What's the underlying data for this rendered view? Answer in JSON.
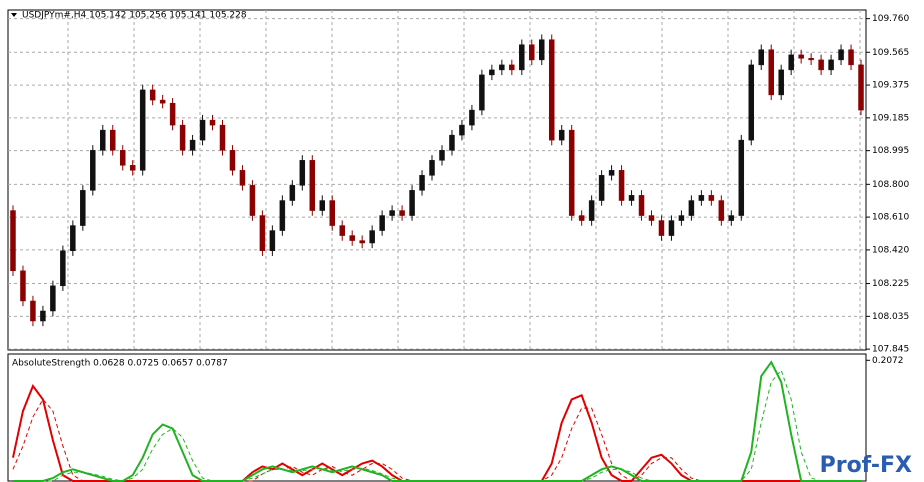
{
  "chart_data": [
    {
      "type": "candlestick",
      "title": "USDJPYm#,H4  105.142 105.256 105.141 105.228",
      "up_color": "#111111",
      "down_color": "#8b0000",
      "grid": true,
      "ylim": [
        107.84,
        109.81
      ],
      "yticks": [
        {
          "value": 109.76,
          "label": "109.760"
        },
        109.565,
        109.375,
        109.185,
        108.995,
        {
          "value": 108.8,
          "label": "108.800"
        },
        {
          "value": 108.61,
          "label": "108.610"
        },
        {
          "value": 108.42,
          "label": "108.420"
        },
        108.225,
        108.035,
        107.845
      ],
      "open": [
        108.648,
        108.299,
        108.124,
        108.008,
        108.066,
        108.212,
        108.415,
        108.561,
        108.765,
        108.997,
        109.114,
        108.997,
        108.91,
        108.881,
        109.347,
        109.288,
        109.27,
        109.143,
        108.997,
        109.056,
        109.172,
        109.143,
        108.997,
        108.881,
        108.794,
        108.619,
        108.415,
        108.532,
        108.706,
        108.794,
        108.939,
        108.648,
        108.706,
        108.561,
        108.503,
        108.474,
        108.46,
        108.532,
        108.619,
        108.648,
        108.619,
        108.765,
        108.852,
        108.939,
        108.997,
        109.085,
        109.143,
        109.23,
        109.434,
        109.463,
        109.492,
        109.463,
        109.609,
        109.521,
        109.638,
        109.056,
        109.114,
        108.619,
        108.59,
        108.706,
        108.852,
        108.881,
        108.706,
        108.736,
        108.619,
        108.59,
        108.503,
        108.59,
        108.619,
        108.706,
        108.736,
        108.706,
        108.59,
        108.619,
        109.056,
        109.492,
        109.58,
        109.318,
        109.463,
        109.55,
        109.53,
        109.521,
        109.463,
        109.521,
        109.58,
        109.492
      ],
      "high": [
        108.678,
        108.329,
        108.154,
        108.096,
        108.242,
        108.445,
        108.591,
        108.795,
        109.027,
        109.144,
        109.144,
        109.027,
        108.94,
        109.377,
        109.377,
        109.318,
        109.3,
        109.173,
        109.086,
        109.202,
        109.202,
        109.173,
        109.027,
        108.911,
        108.824,
        108.649,
        108.562,
        108.736,
        108.824,
        108.969,
        108.969,
        108.736,
        108.736,
        108.591,
        108.533,
        108.504,
        108.562,
        108.649,
        108.678,
        108.678,
        108.795,
        108.882,
        108.969,
        109.027,
        109.115,
        109.173,
        109.26,
        109.464,
        109.493,
        109.522,
        109.522,
        109.639,
        109.639,
        109.668,
        109.668,
        109.144,
        109.144,
        108.649,
        108.736,
        108.882,
        108.911,
        108.911,
        108.766,
        108.766,
        108.649,
        108.62,
        108.62,
        108.649,
        108.736,
        108.766,
        108.766,
        108.736,
        108.649,
        109.086,
        109.522,
        109.61,
        109.61,
        109.493,
        109.58,
        109.58,
        109.56,
        109.551,
        109.551,
        109.61,
        109.61,
        109.522
      ],
      "low": [
        108.269,
        108.094,
        107.978,
        107.978,
        108.036,
        108.182,
        108.385,
        108.531,
        108.735,
        108.967,
        108.967,
        108.88,
        108.851,
        108.851,
        109.258,
        109.24,
        109.113,
        108.967,
        108.967,
        109.026,
        109.113,
        108.967,
        108.851,
        108.764,
        108.589,
        108.385,
        108.385,
        108.502,
        108.676,
        108.764,
        108.618,
        108.618,
        108.531,
        108.473,
        108.444,
        108.43,
        108.43,
        108.502,
        108.589,
        108.589,
        108.589,
        108.735,
        108.822,
        108.909,
        108.967,
        109.055,
        109.113,
        109.2,
        109.404,
        109.433,
        109.433,
        109.433,
        109.491,
        109.491,
        109.026,
        109.026,
        108.589,
        108.56,
        108.56,
        108.676,
        108.822,
        108.676,
        108.676,
        108.589,
        108.56,
        108.473,
        108.473,
        108.56,
        108.589,
        108.676,
        108.676,
        108.56,
        108.56,
        108.589,
        109.026,
        109.462,
        109.288,
        109.288,
        109.433,
        109.5,
        109.491,
        109.433,
        109.433,
        109.491,
        109.462,
        109.2
      ],
      "close": [
        108.299,
        108.124,
        108.008,
        108.066,
        108.212,
        108.415,
        108.561,
        108.765,
        108.997,
        109.114,
        108.997,
        108.91,
        108.881,
        109.347,
        109.288,
        109.27,
        109.143,
        108.997,
        109.056,
        109.172,
        109.143,
        108.997,
        108.881,
        108.794,
        108.619,
        108.415,
        108.532,
        108.706,
        108.794,
        108.939,
        108.648,
        108.706,
        108.561,
        108.503,
        108.474,
        108.46,
        108.532,
        108.619,
        108.648,
        108.619,
        108.765,
        108.852,
        108.939,
        108.997,
        109.085,
        109.143,
        109.23,
        109.434,
        109.463,
        109.492,
        109.463,
        109.609,
        109.521,
        109.638,
        109.056,
        109.114,
        108.619,
        108.59,
        108.706,
        108.852,
        108.881,
        108.706,
        108.736,
        108.619,
        108.59,
        108.503,
        108.59,
        108.619,
        108.706,
        108.736,
        108.706,
        108.59,
        108.619,
        109.056,
        109.492,
        109.58,
        109.318,
        109.463,
        109.55,
        109.53,
        109.521,
        109.463,
        109.521,
        109.58,
        109.492,
        109.23
      ]
    },
    {
      "type": "line",
      "title": "AbsoluteStrength 0.0628 0.0725 0.0657 0.0787",
      "ylim": [
        0,
        0.218
      ],
      "yticks": [
        0.2072
      ],
      "series": [
        {
          "color": "#e00000",
          "dashed": false,
          "values": [
            0.04,
            0.12,
            0.163,
            0.14,
            0.07,
            0.01,
            0,
            0,
            0,
            0,
            0,
            0,
            0,
            0,
            0,
            0,
            0,
            0,
            0,
            0,
            0,
            0,
            0,
            0,
            0.015,
            0.025,
            0.02,
            0.03,
            0.02,
            0.01,
            0.02,
            0.03,
            0.02,
            0.01,
            0.02,
            0.03,
            0.035,
            0.025,
            0.01,
            0,
            0,
            0,
            0,
            0,
            0,
            0,
            0,
            0,
            0,
            0,
            0,
            0,
            0,
            0,
            0.03,
            0.1,
            0.14,
            0.147,
            0.1,
            0.04,
            0.01,
            0,
            0,
            0.02,
            0.04,
            0.045,
            0.03,
            0.01,
            0,
            0,
            0,
            0,
            0,
            0,
            0,
            0,
            0,
            0,
            0,
            0,
            0,
            0,
            0,
            0,
            0,
            0
          ]
        },
        {
          "color": "#e00000",
          "dashed": true,
          "values": [
            0.02,
            0.06,
            0.11,
            0.14,
            0.12,
            0.06,
            0.01,
            0,
            0,
            0,
            0,
            0,
            0,
            0,
            0,
            0,
            0,
            0,
            0,
            0,
            0,
            0,
            0,
            0,
            0,
            0.012,
            0.02,
            0.02,
            0.025,
            0.015,
            0.01,
            0.02,
            0.025,
            0.015,
            0.01,
            0.02,
            0.03,
            0.03,
            0.02,
            0.005,
            0,
            0,
            0,
            0,
            0,
            0,
            0,
            0,
            0,
            0,
            0,
            0,
            0,
            0,
            0.01,
            0.04,
            0.09,
            0.125,
            0.125,
            0.08,
            0.03,
            0.01,
            0,
            0.01,
            0.03,
            0.04,
            0.04,
            0.02,
            0.005,
            0,
            0,
            0,
            0,
            0,
            0,
            0,
            0,
            0,
            0,
            0,
            0,
            0,
            0,
            0,
            0,
            0
          ]
        },
        {
          "color": "#22b322",
          "dashed": false,
          "values": [
            0,
            0,
            0,
            0,
            0.005,
            0.015,
            0.02,
            0.015,
            0.01,
            0.005,
            0,
            0,
            0.01,
            0.04,
            0.08,
            0.097,
            0.09,
            0.05,
            0.01,
            0,
            0,
            0,
            0,
            0,
            0.01,
            0.02,
            0.025,
            0.02,
            0.015,
            0.02,
            0.025,
            0.02,
            0.015,
            0.02,
            0.025,
            0.02,
            0.015,
            0.01,
            0,
            0,
            0,
            0,
            0,
            0,
            0,
            0,
            0,
            0,
            0,
            0,
            0,
            0,
            0,
            0,
            0,
            0,
            0,
            0,
            0.01,
            0.02,
            0.025,
            0.02,
            0.01,
            0,
            0,
            0,
            0,
            0,
            0,
            0,
            0,
            0,
            0,
            0,
            0.05,
            0.18,
            0.204,
            0.17,
            0.08,
            0,
            0,
            0,
            0,
            0,
            0,
            0
          ]
        },
        {
          "color": "#22b322",
          "dashed": true,
          "values": [
            0,
            0,
            0,
            0,
            0,
            0.01,
            0.015,
            0.015,
            0.012,
            0.008,
            0.003,
            0,
            0.005,
            0.02,
            0.055,
            0.08,
            0.09,
            0.075,
            0.035,
            0.005,
            0,
            0,
            0,
            0,
            0.005,
            0.012,
            0.02,
            0.02,
            0.018,
            0.018,
            0.02,
            0.022,
            0.018,
            0.017,
            0.02,
            0.022,
            0.018,
            0.012,
            0.005,
            0,
            0,
            0,
            0,
            0,
            0,
            0,
            0,
            0,
            0,
            0,
            0,
            0,
            0,
            0,
            0,
            0,
            0,
            0,
            0.005,
            0.015,
            0.02,
            0.02,
            0.015,
            0.005,
            0,
            0,
            0,
            0,
            0,
            0,
            0,
            0,
            0,
            0,
            0.02,
            0.1,
            0.17,
            0.19,
            0.14,
            0.05,
            0.005,
            0,
            0,
            0,
            0,
            0
          ]
        }
      ]
    }
  ],
  "logo": "Prof-FX"
}
